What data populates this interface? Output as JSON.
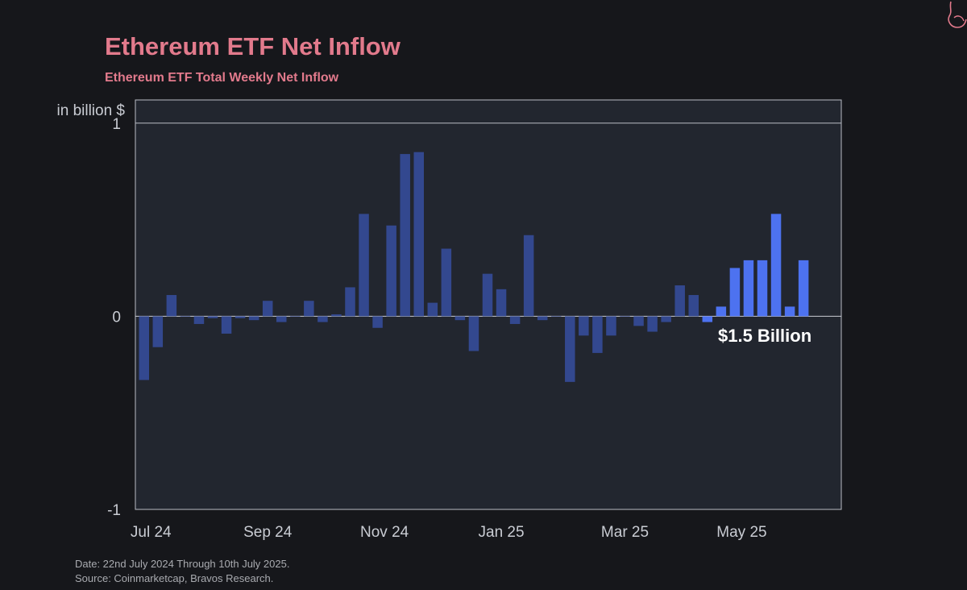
{
  "title": "Ethereum ETF Net Inflow",
  "subtitle": "Ethereum ETF Total Weekly Net Inflow",
  "footnotes": {
    "date": "Date: 22nd July 2024 Through 10th July 2025.",
    "source": "Source: Coinmarketcap, Bravos Research."
  },
  "annotation": "$1.5 Billion",
  "colors": {
    "background": "#16171b",
    "plot_background": "#22262f",
    "title": "#e27a8c",
    "bar_default": "#33488f",
    "bar_highlight": "#4d72f0"
  },
  "chart_data": {
    "type": "bar",
    "ylabel": "in billion $",
    "ylim": [
      -1,
      1.12
    ],
    "yticks": [
      1,
      0,
      -1
    ],
    "xlabels": [
      "Jul 24",
      "Sep 24",
      "Nov 24",
      "Jan 25",
      "Mar 25",
      "May 25"
    ],
    "xlabel_weeks": [
      0.5,
      9,
      17.5,
      26,
      35,
      43.5
    ],
    "grid": false,
    "highlight_from_week": 41,
    "weeks": [
      {
        "start": "2024-07-22",
        "value": -0.33
      },
      {
        "start": "2024-07-29",
        "value": -0.16
      },
      {
        "start": "2024-08-05",
        "value": 0.11
      },
      {
        "start": "2024-08-12",
        "value": 0.0
      },
      {
        "start": "2024-08-19",
        "value": -0.04
      },
      {
        "start": "2024-08-26",
        "value": -0.01
      },
      {
        "start": "2024-09-02",
        "value": -0.09
      },
      {
        "start": "2024-09-09",
        "value": -0.01
      },
      {
        "start": "2024-09-16",
        "value": -0.02
      },
      {
        "start": "2024-09-23",
        "value": 0.08
      },
      {
        "start": "2024-09-30",
        "value": -0.03
      },
      {
        "start": "2024-10-07",
        "value": 0.0
      },
      {
        "start": "2024-10-14",
        "value": 0.08
      },
      {
        "start": "2024-10-21",
        "value": -0.03
      },
      {
        "start": "2024-10-28",
        "value": 0.01
      },
      {
        "start": "2024-11-04",
        "value": 0.15
      },
      {
        "start": "2024-11-11",
        "value": 0.53
      },
      {
        "start": "2024-11-18",
        "value": -0.06
      },
      {
        "start": "2024-11-25",
        "value": 0.47
      },
      {
        "start": "2024-12-02",
        "value": 0.84
      },
      {
        "start": "2024-12-09",
        "value": 0.85
      },
      {
        "start": "2024-12-16",
        "value": 0.07
      },
      {
        "start": "2024-12-23",
        "value": 0.35
      },
      {
        "start": "2024-12-30",
        "value": -0.02
      },
      {
        "start": "2025-01-06",
        "value": -0.18
      },
      {
        "start": "2025-01-13",
        "value": 0.22
      },
      {
        "start": "2025-01-20",
        "value": 0.14
      },
      {
        "start": "2025-01-27",
        "value": -0.04
      },
      {
        "start": "2025-02-03",
        "value": 0.42
      },
      {
        "start": "2025-02-10",
        "value": -0.02
      },
      {
        "start": "2025-02-17",
        "value": 0.0
      },
      {
        "start": "2025-02-24",
        "value": -0.34
      },
      {
        "start": "2025-03-03",
        "value": -0.1
      },
      {
        "start": "2025-03-10",
        "value": -0.19
      },
      {
        "start": "2025-03-17",
        "value": -0.1
      },
      {
        "start": "2025-03-24",
        "value": 0.0
      },
      {
        "start": "2025-03-31",
        "value": -0.05
      },
      {
        "start": "2025-04-07",
        "value": -0.08
      },
      {
        "start": "2025-04-14",
        "value": -0.03
      },
      {
        "start": "2025-04-21",
        "value": 0.16
      },
      {
        "start": "2025-04-28",
        "value": 0.11
      },
      {
        "start": "2025-05-05",
        "value": -0.03
      },
      {
        "start": "2025-05-12",
        "value": 0.05
      },
      {
        "start": "2025-05-19",
        "value": 0.25
      },
      {
        "start": "2025-05-26",
        "value": 0.29
      },
      {
        "start": "2025-06-02",
        "value": 0.29
      },
      {
        "start": "2025-06-09",
        "value": 0.53
      },
      {
        "start": "2025-06-16",
        "value": 0.05
      },
      {
        "start": "2025-06-23",
        "value": 0.29
      }
    ]
  }
}
